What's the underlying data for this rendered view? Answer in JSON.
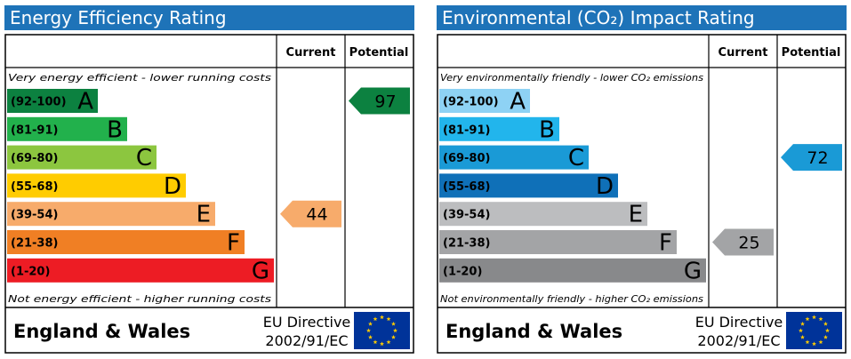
{
  "chart_data": [
    {
      "type": "bar",
      "title": "Energy Efficiency Rating",
      "columns": [
        "Current",
        "Potential"
      ],
      "top_note": "Very energy efficient - lower running costs",
      "bottom_note": "Not energy efficient - higher running costs",
      "bands": [
        {
          "range": "(92-100)",
          "letter": "A",
          "color": "#0c8140"
        },
        {
          "range": "(81-91)",
          "letter": "B",
          "color": "#22b14c"
        },
        {
          "range": "(69-80)",
          "letter": "C",
          "color": "#8cc63f"
        },
        {
          "range": "(55-68)",
          "letter": "D",
          "color": "#ffcc00"
        },
        {
          "range": "(39-54)",
          "letter": "E",
          "color": "#f7ab6b"
        },
        {
          "range": "(21-38)",
          "letter": "F",
          "color": "#f07f24"
        },
        {
          "range": "(1-20)",
          "letter": "G",
          "color": "#ed1c24"
        }
      ],
      "current": {
        "value": 44,
        "color": "#f7ab6b"
      },
      "potential": {
        "value": 97,
        "color": "#0c8140"
      },
      "footer_region": "England & Wales",
      "footer_directive_line1": "EU Directive",
      "footer_directive_line2": "2002/91/EC"
    },
    {
      "type": "bar",
      "title": "Environmental (CO₂) Impact Rating",
      "columns": [
        "Current",
        "Potential"
      ],
      "top_note": "Very environmentally friendly - lower CO₂ emissions",
      "bottom_note": "Not environmentally friendly - higher CO₂ emissions",
      "bands": [
        {
          "range": "(92-100)",
          "letter": "A",
          "color": "#8ed2f4"
        },
        {
          "range": "(81-91)",
          "letter": "B",
          "color": "#22b5ec"
        },
        {
          "range": "(69-80)",
          "letter": "C",
          "color": "#1a9ad6"
        },
        {
          "range": "(55-68)",
          "letter": "D",
          "color": "#0f70b8"
        },
        {
          "range": "(39-54)",
          "letter": "E",
          "color": "#bcbdbf"
        },
        {
          "range": "(21-38)",
          "letter": "F",
          "color": "#a3a4a6"
        },
        {
          "range": "(1-20)",
          "letter": "G",
          "color": "#88898b"
        }
      ],
      "current": {
        "value": 25,
        "color": "#a3a4a6"
      },
      "potential": {
        "value": 72,
        "color": "#1a9ad6"
      },
      "footer_region": "England & Wales",
      "footer_directive_line1": "EU Directive",
      "footer_directive_line2": "2002/91/EC"
    }
  ]
}
